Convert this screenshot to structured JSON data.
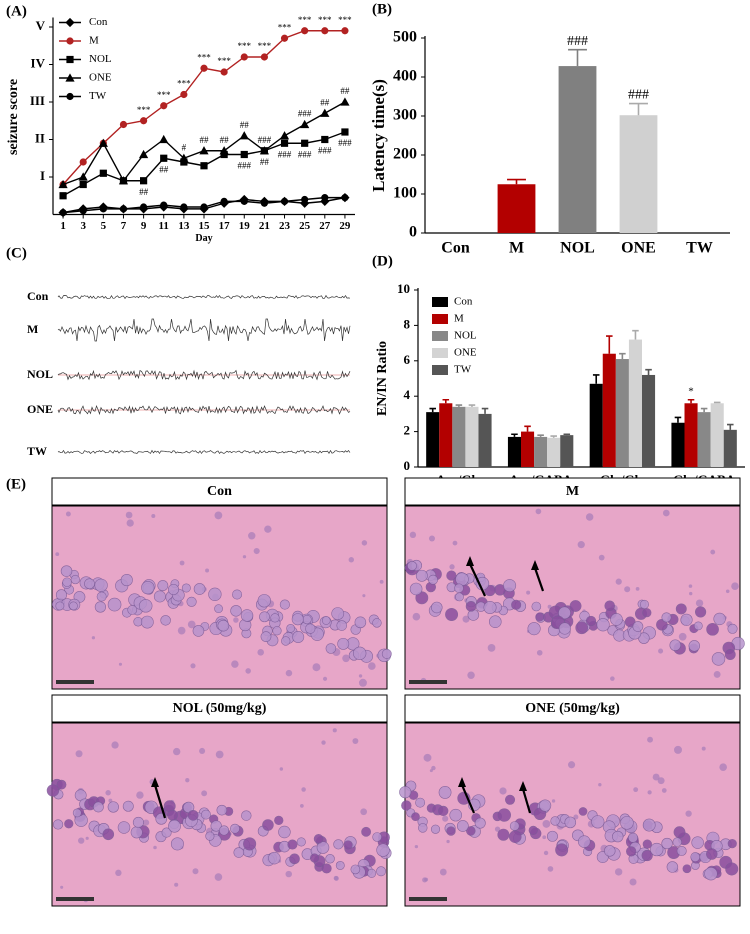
{
  "chart_data": [
    {
      "type": "line",
      "label": "(A)",
      "xlabel": "Day",
      "ylabel": "seizure score",
      "x": [
        1,
        3,
        5,
        7,
        9,
        11,
        13,
        15,
        17,
        19,
        21,
        23,
        25,
        27,
        29
      ],
      "xlim": [
        0,
        30
      ],
      "xticks": [
        1,
        3,
        5,
        7,
        9,
        11,
        13,
        15,
        17,
        19,
        21,
        23,
        25,
        27,
        29
      ],
      "ylim": [
        0,
        5.2
      ],
      "yticks": [
        {
          "value": 1,
          "label": "I"
        },
        {
          "value": 2,
          "label": "II"
        },
        {
          "value": 3,
          "label": "III"
        },
        {
          "value": 4,
          "label": "IV"
        },
        {
          "value": 5,
          "label": "V"
        }
      ],
      "legend": "upper left",
      "grid": false,
      "series": [
        {
          "name": "Con",
          "color": "#000000",
          "marker": "diamond",
          "values": [
            0.05,
            0.15,
            0.2,
            0.15,
            0.15,
            0.2,
            0.15,
            0.15,
            0.3,
            0.4,
            0.35,
            0.35,
            0.3,
            0.35,
            0.45
          ]
        },
        {
          "name": "M",
          "color": "#b22222",
          "marker": "circle",
          "values": [
            0.8,
            1.4,
            1.9,
            2.4,
            2.5,
            2.9,
            3.2,
            3.9,
            3.8,
            4.2,
            4.2,
            4.7,
            4.9,
            4.9,
            4.9
          ],
          "annotations": [
            null,
            null,
            null,
            null,
            "***",
            "***",
            "***",
            "***",
            "***",
            "***",
            "***",
            "***",
            "***",
            "***",
            "***"
          ]
        },
        {
          "name": "NOL",
          "color": "#000000",
          "marker": "square",
          "values": [
            0.5,
            0.8,
            1.1,
            0.9,
            0.9,
            1.5,
            1.4,
            1.3,
            1.6,
            1.6,
            1.7,
            1.9,
            1.9,
            2.0,
            2.2
          ],
          "annotations": [
            null,
            null,
            null,
            null,
            "##",
            "##",
            null,
            null,
            null,
            "###",
            "##",
            "###",
            "###",
            "###",
            "###"
          ]
        },
        {
          "name": "ONE",
          "color": "#000000",
          "marker": "triangle",
          "values": [
            0.8,
            1.0,
            1.9,
            0.9,
            1.6,
            2.0,
            1.5,
            1.7,
            1.7,
            2.1,
            1.7,
            2.1,
            2.4,
            2.7,
            3.0
          ],
          "annotations": [
            null,
            null,
            null,
            null,
            null,
            null,
            "#",
            "##",
            "##",
            "##",
            "###",
            null,
            "###",
            "##",
            "##"
          ]
        },
        {
          "name": "TW",
          "color": "#000000",
          "marker": "circle",
          "values": [
            0.05,
            0.1,
            0.15,
            0.15,
            0.2,
            0.25,
            0.2,
            0.2,
            0.35,
            0.35,
            0.3,
            0.35,
            0.4,
            0.45,
            0.45
          ]
        }
      ]
    },
    {
      "type": "bar",
      "label": "(B)",
      "ylabel": "Latency time(s)",
      "categories": [
        "Con",
        "M",
        "NOL",
        "ONE",
        "TW"
      ],
      "values": [
        0,
        125,
        428,
        302,
        0
      ],
      "errors": [
        0,
        12,
        42,
        30,
        0
      ],
      "colors": [
        "#000000",
        "#b30000",
        "#808080",
        "#d0d0d0",
        "#555555"
      ],
      "annotations": [
        null,
        null,
        "###",
        "###",
        null
      ],
      "ylim": [
        0,
        500
      ],
      "yticks": [
        0,
        100,
        200,
        300,
        400,
        500
      ],
      "grid": false
    },
    {
      "type": "bar",
      "label": "(D)",
      "ylabel": "EN/IN Ratio",
      "categories": [
        "Asp/Gly",
        "Asp/GABA",
        "Glu/Gly",
        "Glu/GABA"
      ],
      "ylim": [
        0,
        10
      ],
      "yticks": [
        0,
        2,
        4,
        6,
        8,
        10
      ],
      "legend": "upper left",
      "grid": false,
      "series": [
        {
          "name": "Con",
          "color": "#000000",
          "values": [
            3.1,
            1.7,
            4.7,
            2.5
          ],
          "errors": [
            0.2,
            0.15,
            0.5,
            0.3
          ]
        },
        {
          "name": "M",
          "color": "#b30000",
          "values": [
            3.6,
            2.0,
            6.4,
            3.6
          ],
          "errors": [
            0.2,
            0.3,
            1.0,
            0.2
          ],
          "annotations": [
            null,
            null,
            null,
            "*"
          ]
        },
        {
          "name": "NOL",
          "color": "#888888",
          "values": [
            3.4,
            1.7,
            6.1,
            3.1
          ],
          "errors": [
            0.1,
            0.1,
            0.3,
            0.2
          ]
        },
        {
          "name": "ONE",
          "color": "#d3d3d3",
          "values": [
            3.4,
            1.65,
            7.2,
            3.6
          ],
          "errors": [
            0.1,
            0.1,
            0.5,
            0.05
          ]
        },
        {
          "name": "TW",
          "color": "#555555",
          "values": [
            3.0,
            1.8,
            5.2,
            2.1
          ],
          "errors": [
            0.3,
            0.05,
            0.3,
            0.3
          ]
        }
      ]
    }
  ],
  "eeg": {
    "label": "(C)",
    "traces": [
      "Con",
      "M",
      "NOL",
      "ONE",
      "TW"
    ]
  },
  "histology": {
    "label": "(E)",
    "panels": [
      "Con",
      "M",
      "NOL (50mg/kg)",
      "ONE (50mg/kg)"
    ]
  }
}
